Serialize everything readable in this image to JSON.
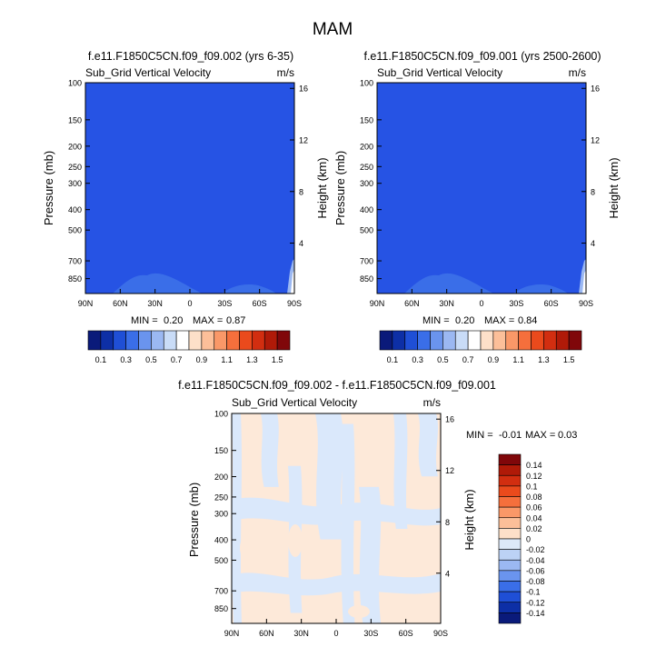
{
  "page_title": "MAM",
  "chart_data": [
    {
      "type": "heatmap",
      "title": "f.e11.F1850C5CN.f09_f09.002 (yrs 6-35)",
      "subtitle_left": "Sub_Grid Vertical Velocity",
      "units": "m/s",
      "ylabel": "Pressure (mb)",
      "ylabel_right": "Height (km)",
      "x_ticks": [
        "90N",
        "60N",
        "30N",
        "0",
        "30S",
        "60S",
        "90S"
      ],
      "y_ticks": [
        "100",
        "150",
        "200",
        "250",
        "300",
        "400",
        "500",
        "700",
        "850"
      ],
      "y_ticks_right": [
        "16",
        "12",
        "8",
        "4"
      ],
      "min_label": "MIN =",
      "min_value": "0.20",
      "max_label": "MAX =",
      "max_value": "0.87",
      "dominant_level_range": [
        0.2,
        0.3
      ]
    },
    {
      "type": "heatmap",
      "title": "f.e11.F1850C5CN.f09_f09.001 (yrs 2500-2600)",
      "subtitle_left": "Sub_Grid Vertical Velocity",
      "units": "m/s",
      "ylabel": "Pressure (mb)",
      "ylabel_right": "Height (km)",
      "x_ticks": [
        "90N",
        "60N",
        "30N",
        "0",
        "30S",
        "60S",
        "90S"
      ],
      "y_ticks": [
        "100",
        "150",
        "200",
        "250",
        "300",
        "400",
        "500",
        "700",
        "850"
      ],
      "y_ticks_right": [
        "16",
        "12",
        "8",
        "4"
      ],
      "min_label": "MIN =",
      "min_value": "0.20",
      "max_label": "MAX =",
      "max_value": "0.84",
      "dominant_level_range": [
        0.2,
        0.3
      ]
    },
    {
      "type": "heatmap",
      "title": "f.e11.F1850C5CN.f09_f09.002 - f.e11.F1850C5CN.f09_f09.001",
      "subtitle_left": "Sub_Grid Vertical Velocity",
      "units": "m/s",
      "ylabel": "Pressure (mb)",
      "ylabel_right": "Height (km)",
      "x_ticks": [
        "90N",
        "60N",
        "30N",
        "0",
        "30S",
        "60S",
        "90S"
      ],
      "y_ticks": [
        "100",
        "150",
        "200",
        "250",
        "300",
        "400",
        "500",
        "700",
        "850"
      ],
      "y_ticks_right": [
        "16",
        "12",
        "8",
        "4"
      ],
      "min_label": "MIN =",
      "min_value": "-0.01",
      "max_label": "MAX =",
      "max_value": "0.03",
      "dominant_levels": [
        -0.02,
        0,
        0.02
      ]
    }
  ],
  "colorbar_top": {
    "labels": [
      "0.1",
      "0.3",
      "0.5",
      "0.7",
      "0.9",
      "1.1",
      "1.3",
      "1.5"
    ],
    "colors": [
      "#0a1a7a",
      "#0d2fa6",
      "#1f4fd6",
      "#3a6ee8",
      "#6a94ee",
      "#9bb8f2",
      "#c9dcf7",
      "#ffffff",
      "#fde0c9",
      "#fcbf99",
      "#fa9868",
      "#f56f3c",
      "#ea4a1c",
      "#d22e10",
      "#b01a08",
      "#80070a"
    ]
  },
  "colorbar_diff": {
    "labels": [
      "0.14",
      "0.12",
      "0.1",
      "0.08",
      "0.06",
      "0.04",
      "0.02",
      "0",
      "-0.02",
      "-0.04",
      "-0.06",
      "-0.08",
      "-0.1",
      "-0.12",
      "-0.14"
    ],
    "colors": [
      "#80070a",
      "#b01a08",
      "#d22e10",
      "#ea4a1c",
      "#f56f3c",
      "#fa9868",
      "#fcbf99",
      "#fde0c9",
      "#dde9f8",
      "#bcd2f5",
      "#9bb8f2",
      "#6a94ee",
      "#3a6ee8",
      "#1f4fd6",
      "#0d2fa6",
      "#0a1a7a"
    ]
  },
  "field_colors": {
    "base_blue": "#2653e4",
    "mid_blue": "#3a6ee8",
    "light_blue": "#9bb8f2",
    "white": "#ffffff",
    "diff_positive": "#fde9d9",
    "diff_negative": "#dae8fb"
  }
}
